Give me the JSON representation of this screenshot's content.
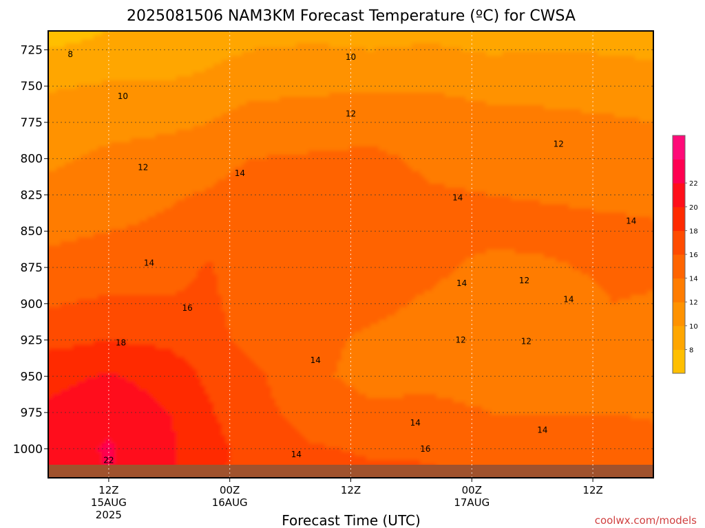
{
  "chart_data": {
    "type": "heatmap",
    "title": "2025081506 NAM3KM Forecast Temperature (ºC) for CWSA",
    "xlabel": "Forecast Time (UTC)",
    "ylabel": "",
    "y_axis": {
      "ticks": [
        725,
        750,
        775,
        800,
        825,
        850,
        875,
        900,
        925,
        950,
        975,
        1000
      ],
      "range": [
        1020,
        712
      ],
      "unit": "hPa"
    },
    "x_axis": {
      "range_hours": [
        6,
        66
      ],
      "ticks": [
        {
          "hour": 12,
          "lines": [
            "12Z",
            "15AUG",
            "2025"
          ]
        },
        {
          "hour": 24,
          "lines": [
            "00Z",
            "16AUG"
          ]
        },
        {
          "hour": 36,
          "lines": [
            "12Z"
          ]
        },
        {
          "hour": 48,
          "lines": [
            "00Z",
            "17AUG"
          ]
        },
        {
          "hour": 60,
          "lines": [
            "12Z"
          ]
        }
      ]
    },
    "grid": true,
    "colorbar": {
      "placement": "right",
      "levels": [
        6,
        8,
        10,
        12,
        14,
        16,
        18,
        20,
        22,
        24
      ],
      "labels": [
        "8",
        "10",
        "12",
        "14",
        "16",
        "18",
        "20",
        "22"
      ],
      "colors": [
        "#ffbf00",
        "#ffa600",
        "#ff9200",
        "#ff7c00",
        "#ff6400",
        "#ff4b00",
        "#ff2a00",
        "#ff0f1a",
        "#ff0050",
        "#ff0a78"
      ]
    },
    "temperature_profiles": [
      {
        "hour": 6,
        "pressure": [
          712,
          725,
          750,
          775,
          800,
          825,
          850,
          875,
          900,
          925,
          950,
          975,
          1000,
          1020
        ],
        "temp_c": [
          7.2,
          8.0,
          9.8,
          10.8,
          11.6,
          12.6,
          13.6,
          14.6,
          15.8,
          17.4,
          19.4,
          20.4,
          21.0,
          21.0
        ]
      },
      {
        "hour": 12,
        "pressure": [
          712,
          725,
          750,
          775,
          800,
          825,
          850,
          875,
          900,
          925,
          950,
          975,
          1000,
          1020
        ],
        "temp_c": [
          8.0,
          8.6,
          10.2,
          11.4,
          12.4,
          13.0,
          14.0,
          14.8,
          16.4,
          18.0,
          20.2,
          21.4,
          22.2,
          22.0
        ]
      },
      {
        "hour": 18,
        "pressure": [
          712,
          725,
          750,
          775,
          800,
          825,
          850,
          875,
          900,
          925,
          950,
          975,
          1000,
          1020
        ],
        "temp_c": [
          8.4,
          8.8,
          10.2,
          11.6,
          12.8,
          13.8,
          14.4,
          15.2,
          16.2,
          17.6,
          19.2,
          20.0,
          20.4,
          20.2
        ]
      },
      {
        "hour": 22,
        "pressure": [
          712,
          725,
          750,
          775,
          800,
          825,
          850,
          875,
          900,
          925,
          950,
          975,
          1000,
          1020
        ],
        "temp_c": [
          8.8,
          9.4,
          10.6,
          12.0,
          13.2,
          14.2,
          15.2,
          16.2,
          16.6,
          16.8,
          17.6,
          18.2,
          18.6,
          18.4
        ]
      },
      {
        "hour": 26,
        "pressure": [
          712,
          725,
          750,
          775,
          800,
          825,
          850,
          875,
          900,
          925,
          950,
          975,
          1000,
          1020
        ],
        "temp_c": [
          9.2,
          10.0,
          11.4,
          12.8,
          14.0,
          15.0,
          15.2,
          14.2,
          14.6,
          15.4,
          16.6,
          16.8,
          17.4,
          17.4
        ]
      },
      {
        "hour": 32,
        "pressure": [
          712,
          725,
          750,
          775,
          800,
          825,
          850,
          875,
          900,
          925,
          950,
          975,
          1000,
          1020
        ],
        "temp_c": [
          9.6,
          10.2,
          11.6,
          13.0,
          14.2,
          15.0,
          15.4,
          15.4,
          15.0,
          14.6,
          14.4,
          15.2,
          16.2,
          16.4
        ]
      },
      {
        "hour": 38,
        "pressure": [
          712,
          725,
          750,
          775,
          800,
          825,
          850,
          875,
          900,
          925,
          950,
          975,
          1000,
          1020
        ],
        "temp_c": [
          9.4,
          10.0,
          11.8,
          13.2,
          14.4,
          14.8,
          15.0,
          14.8,
          14.6,
          13.6,
          13.4,
          14.4,
          15.8,
          16.4
        ]
      },
      {
        "hour": 44,
        "pressure": [
          712,
          725,
          750,
          775,
          800,
          825,
          850,
          875,
          900,
          925,
          950,
          975,
          1000,
          1020
        ],
        "temp_c": [
          9.6,
          10.2,
          11.8,
          13.0,
          13.6,
          14.2,
          14.8,
          14.6,
          13.6,
          13.2,
          13.4,
          14.6,
          15.8,
          16.2
        ]
      },
      {
        "hour": 50,
        "pressure": [
          712,
          725,
          750,
          775,
          800,
          825,
          850,
          875,
          900,
          925,
          950,
          975,
          1000,
          1020
        ],
        "temp_c": [
          9.2,
          9.8,
          11.4,
          12.6,
          13.4,
          14.0,
          14.8,
          13.2,
          12.4,
          12.4,
          13.0,
          14.0,
          15.2,
          15.8
        ]
      },
      {
        "hour": 56,
        "pressure": [
          712,
          725,
          750,
          775,
          800,
          825,
          850,
          875,
          900,
          925,
          950,
          975,
          1000,
          1020
        ],
        "temp_c": [
          9.4,
          10.0,
          11.4,
          12.4,
          13.2,
          13.8,
          14.6,
          13.8,
          12.8,
          12.6,
          13.2,
          14.0,
          15.0,
          15.6
        ]
      },
      {
        "hour": 62,
        "pressure": [
          712,
          725,
          750,
          775,
          800,
          825,
          850,
          875,
          900,
          925,
          950,
          975,
          1000,
          1020
        ],
        "temp_c": [
          9.2,
          9.8,
          11.2,
          12.2,
          13.0,
          13.6,
          14.4,
          14.4,
          14.0,
          13.4,
          13.6,
          14.0,
          14.8,
          15.2
        ]
      },
      {
        "hour": 66,
        "pressure": [
          712,
          725,
          750,
          775,
          800,
          825,
          850,
          875,
          900,
          925,
          950,
          975,
          1000,
          1020
        ],
        "temp_c": [
          9.0,
          9.6,
          11.0,
          12.0,
          13.0,
          13.6,
          14.2,
          14.4,
          13.8,
          13.4,
          13.4,
          13.8,
          14.6,
          15.0
        ]
      }
    ],
    "contour_labels": [
      {
        "hour": 8.2,
        "pressure": 728,
        "text": "8"
      },
      {
        "hour": 36.0,
        "pressure": 730,
        "text": "10"
      },
      {
        "hour": 13.4,
        "pressure": 757,
        "text": "10"
      },
      {
        "hour": 36.0,
        "pressure": 769,
        "text": "12"
      },
      {
        "hour": 56.6,
        "pressure": 790,
        "text": "12"
      },
      {
        "hour": 15.4,
        "pressure": 806,
        "text": "12"
      },
      {
        "hour": 25.0,
        "pressure": 810,
        "text": "14"
      },
      {
        "hour": 46.6,
        "pressure": 827,
        "text": "14"
      },
      {
        "hour": 63.8,
        "pressure": 843,
        "text": "14"
      },
      {
        "hour": 16.0,
        "pressure": 872,
        "text": "14"
      },
      {
        "hour": 19.8,
        "pressure": 903,
        "text": "16"
      },
      {
        "hour": 13.2,
        "pressure": 927,
        "text": "18"
      },
      {
        "hour": 12.0,
        "pressure": 1008,
        "text": "22"
      },
      {
        "hour": 47.0,
        "pressure": 886,
        "text": "14"
      },
      {
        "hour": 53.2,
        "pressure": 884,
        "text": "12"
      },
      {
        "hour": 57.6,
        "pressure": 897,
        "text": "14"
      },
      {
        "hour": 46.9,
        "pressure": 925,
        "text": "12"
      },
      {
        "hour": 53.4,
        "pressure": 926,
        "text": "12"
      },
      {
        "hour": 32.5,
        "pressure": 939,
        "text": "14"
      },
      {
        "hour": 42.4,
        "pressure": 982,
        "text": "14"
      },
      {
        "hour": 55.0,
        "pressure": 987,
        "text": "14"
      },
      {
        "hour": 43.4,
        "pressure": 1000,
        "text": "16"
      },
      {
        "hour": 30.6,
        "pressure": 1004,
        "text": "14"
      }
    ]
  },
  "credit": "coolwx.com/models"
}
